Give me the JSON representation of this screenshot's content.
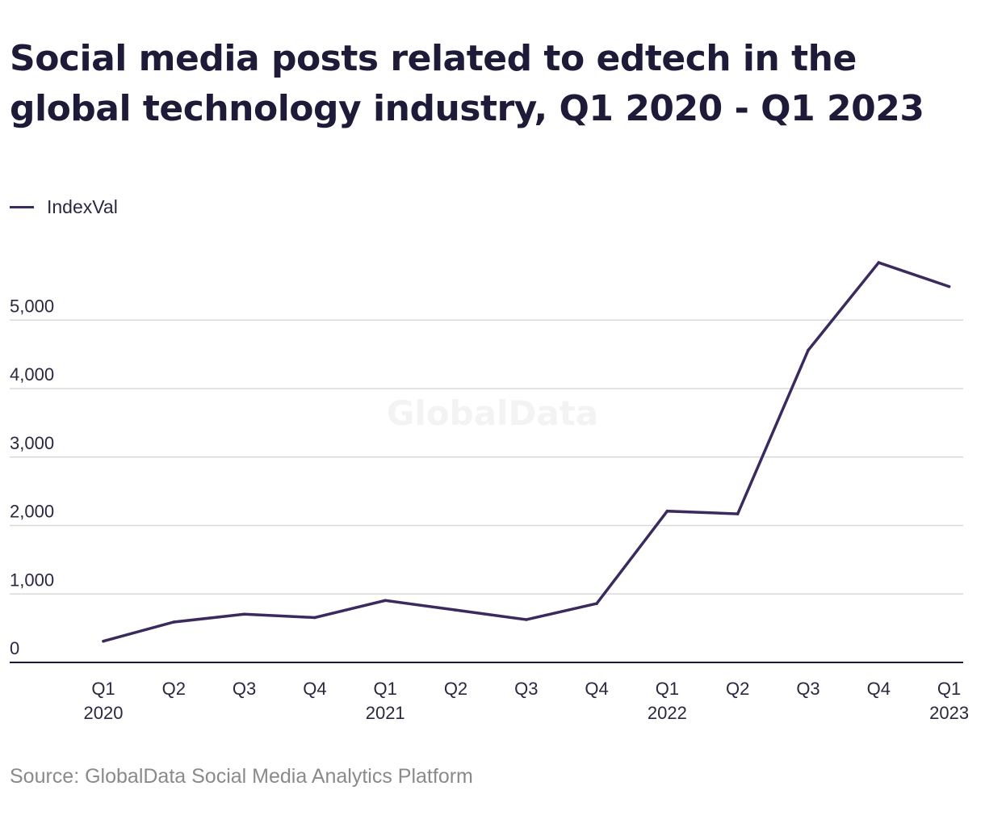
{
  "chart_data": {
    "type": "line",
    "title": "Social media posts related to edtech in the global technology industry, Q1 2020 - Q1 2023",
    "categories": [
      [
        "Q1",
        "2020"
      ],
      [
        "Q2",
        ""
      ],
      [
        "Q3",
        ""
      ],
      [
        "Q4",
        ""
      ],
      [
        "Q1",
        "2021"
      ],
      [
        "Q2",
        ""
      ],
      [
        "Q3",
        ""
      ],
      [
        "Q4",
        ""
      ],
      [
        "Q1",
        "2022"
      ],
      [
        "Q2",
        ""
      ],
      [
        "Q3",
        ""
      ],
      [
        "Q4",
        ""
      ],
      [
        "Q1",
        "2023"
      ]
    ],
    "series": [
      {
        "name": "IndexVal",
        "color": "#3b2a5e",
        "values": [
          310,
          590,
          705,
          655,
          905,
          765,
          625,
          860,
          2210,
          2170,
          4560,
          5840,
          5490
        ]
      }
    ],
    "yticks": [
      0,
      1000,
      2000,
      3000,
      4000,
      5000
    ],
    "ytick_labels": [
      "0",
      "1,000",
      "2,000",
      "3,000",
      "4,000",
      "5,000"
    ],
    "ylim": [
      0,
      5900
    ],
    "grid": true,
    "legend_position": "top-left",
    "xlabel": "",
    "ylabel": "",
    "watermark": "GlobalData",
    "source": "Source: GlobalData Social Media Analytics Platform"
  },
  "colors": {
    "line": "#3b2a5e",
    "grid": "#d9d9d9",
    "axis": "#1d1b38",
    "text": "#1d1b38",
    "muted": "#8a8a8a"
  }
}
